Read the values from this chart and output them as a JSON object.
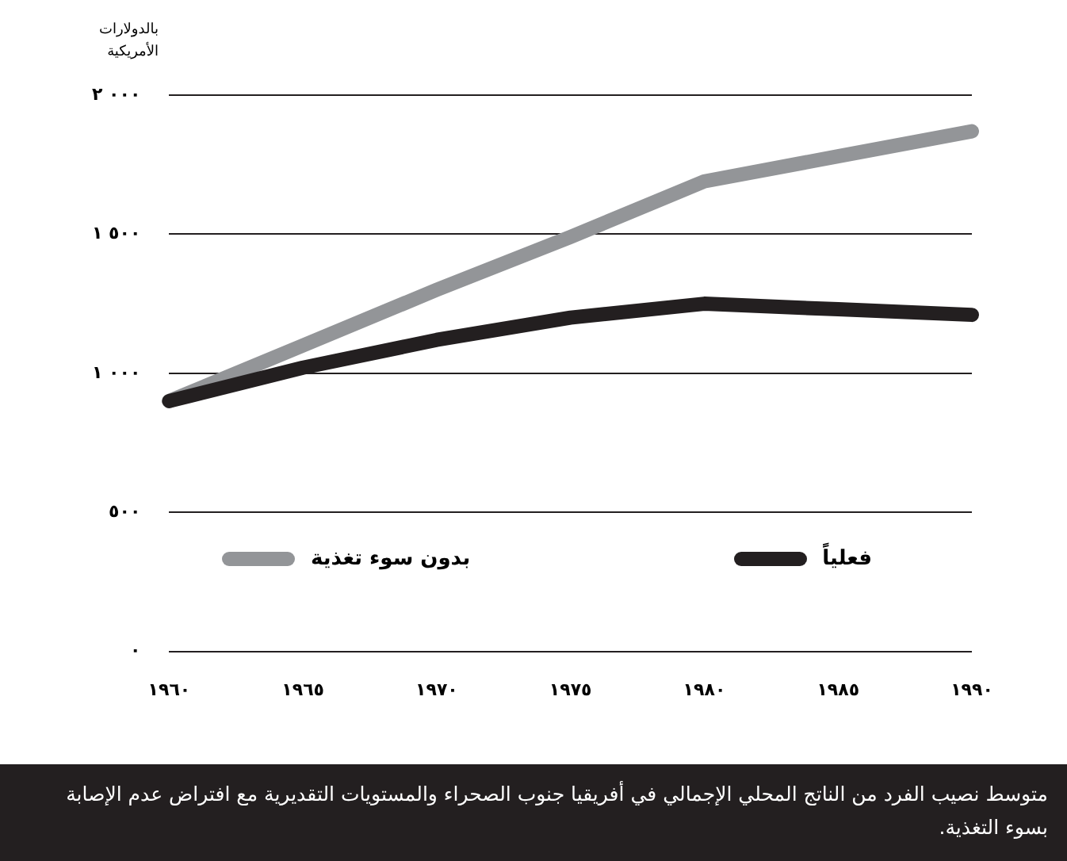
{
  "chart_data": {
    "type": "line",
    "ylabel": "بالدولارات الأمريكية",
    "x": [
      1960,
      1965,
      1970,
      1975,
      1980,
      1985,
      1990
    ],
    "series": [
      {
        "name": "فعلياً",
        "color": "#231f20",
        "values": [
          900,
          1020,
          1120,
          1200,
          1250,
          1230,
          1210
        ]
      },
      {
        "name": "بدون سوء تغذية",
        "color": "#939598",
        "values": [
          900,
          1100,
          1300,
          1490,
          1690,
          1780,
          1870
        ]
      }
    ],
    "xlim": [
      1960,
      1990
    ],
    "xticks": [
      {
        "value": 1960,
        "label": "١٩٦٠"
      },
      {
        "value": 1965,
        "label": "١٩٦٥"
      },
      {
        "value": 1970,
        "label": "١٩٧٠"
      },
      {
        "value": 1975,
        "label": "١٩٧٥"
      },
      {
        "value": 1980,
        "label": "١٩٨٠"
      },
      {
        "value": 1985,
        "label": "١٩٨٥"
      },
      {
        "value": 1990,
        "label": "١٩٩٠"
      }
    ],
    "ylim": [
      0,
      2000
    ],
    "yticks": [
      {
        "value": 0,
        "label": "٠"
      },
      {
        "value": 500,
        "label": "٥٠٠"
      },
      {
        "value": 1000,
        "label": "١ ٠٠٠"
      },
      {
        "value": 1500,
        "label": "١ ٥٠٠"
      },
      {
        "value": 2000,
        "label": "٢ ٠٠٠"
      }
    ],
    "grid": "y",
    "legend": "bottom",
    "marker": "none",
    "line_style": "solid",
    "annotations": [
      "متوسط نصيب الفرد من الناتج المحلي الإجمالي في أفريقيا جنوب الصحراء والمستويات التقديرية مع افتراض عدم الإصابة بسوء التغذية."
    ]
  }
}
